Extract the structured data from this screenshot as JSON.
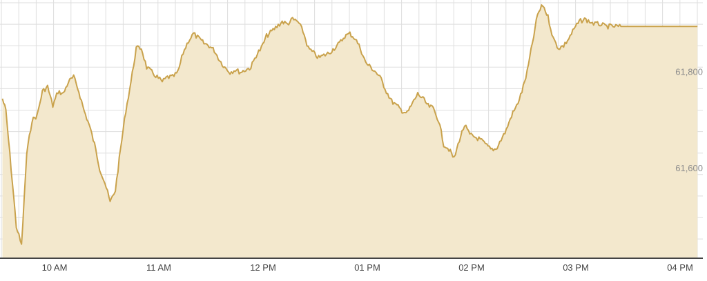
{
  "chart_data": {
    "type": "area",
    "title": "",
    "xlabel": "",
    "ylabel": "",
    "x_ticks": [
      "10 AM",
      "11 AM",
      "12 PM",
      "01 PM",
      "02 PM",
      "03 PM",
      "04 PM"
    ],
    "x_range": [
      "09:30",
      "16:15"
    ],
    "y_ticks": [
      61800,
      61600
    ],
    "y_tick_labels": [
      "61,800",
      "61,600"
    ],
    "ylim": [
      61415,
      61950
    ],
    "grid": true,
    "colors": {
      "line": "#c9a24c",
      "fill": "#f3e8cd",
      "grid": "#dedede",
      "axis": "#444444",
      "label": "#8c8c8c"
    },
    "series": [
      {
        "x": [
          "09:30",
          "09:32",
          "09:35",
          "09:38",
          "09:41",
          "09:44",
          "09:47",
          "09:50",
          "09:53",
          "09:56",
          "09:59",
          "10:02",
          "10:05",
          "10:08",
          "10:11",
          "10:14",
          "10:17",
          "10:20",
          "10:23",
          "10:26",
          "10:29",
          "10:32",
          "10:35",
          "10:38",
          "10:41",
          "10:44",
          "10:47",
          "10:50",
          "10:53",
          "10:56",
          "10:59",
          "11:02",
          "11:05",
          "11:08",
          "11:11",
          "11:14",
          "11:17",
          "11:20",
          "11:23",
          "11:26",
          "11:29",
          "11:32",
          "11:35",
          "11:38",
          "11:41",
          "11:44",
          "11:47",
          "11:50",
          "11:53",
          "11:56",
          "11:59",
          "12:02",
          "12:05",
          "12:08",
          "12:11",
          "12:14",
          "12:17",
          "12:20",
          "12:23",
          "12:26",
          "12:29",
          "12:32",
          "12:35",
          "12:38",
          "12:41",
          "12:44",
          "12:47",
          "12:50",
          "12:53",
          "12:56",
          "12:59",
          "13:02",
          "13:05",
          "13:08",
          "13:11",
          "13:14",
          "13:17",
          "13:20",
          "13:23",
          "13:26",
          "13:29",
          "13:32",
          "13:35",
          "13:38",
          "13:41",
          "13:44",
          "13:47",
          "13:50",
          "13:53",
          "13:56",
          "13:59",
          "14:02",
          "14:05",
          "14:08",
          "14:11",
          "14:14",
          "14:17",
          "14:20",
          "14:23",
          "14:26",
          "14:29",
          "14:32",
          "14:35",
          "14:38",
          "14:41",
          "14:44",
          "14:47",
          "14:50",
          "14:53",
          "14:56",
          "14:59",
          "15:02",
          "15:05",
          "15:08",
          "15:11",
          "15:14",
          "15:17",
          "15:20",
          "15:23",
          "15:26",
          "15:29",
          "15:30",
          "15:40",
          "15:50",
          "16:00",
          "16:10"
        ],
        "values": [
          61745,
          61720,
          61600,
          61480,
          61440,
          61630,
          61700,
          61710,
          61760,
          61770,
          61730,
          61760,
          61755,
          61780,
          61790,
          61760,
          61720,
          61690,
          61650,
          61600,
          61570,
          61530,
          61555,
          61640,
          61720,
          61780,
          61850,
          61850,
          61810,
          61800,
          61790,
          61780,
          61790,
          61790,
          61800,
          61840,
          61865,
          61880,
          61870,
          61860,
          61855,
          61845,
          61825,
          61810,
          61800,
          61805,
          61800,
          61805,
          61810,
          61835,
          61850,
          61875,
          61885,
          61895,
          61905,
          61900,
          61910,
          61905,
          61885,
          61850,
          61840,
          61830,
          61835,
          61840,
          61850,
          61860,
          61875,
          61880,
          61870,
          61850,
          61820,
          61810,
          61800,
          61785,
          61760,
          61740,
          61730,
          61720,
          61715,
          61735,
          61755,
          61745,
          61730,
          61725,
          61700,
          61650,
          61640,
          61620,
          61660,
          61690,
          61670,
          61665,
          61660,
          61650,
          61640,
          61640,
          61660,
          61680,
          61710,
          61730,
          61760,
          61800,
          61860,
          61920,
          61940,
          61915,
          61870,
          61850,
          61855,
          61870,
          61890,
          61905,
          61910,
          61905,
          61900,
          61900,
          61895,
          61895,
          61895,
          61895,
          61895,
          61895,
          61895,
          61895,
          61895,
          61895
        ]
      }
    ]
  }
}
